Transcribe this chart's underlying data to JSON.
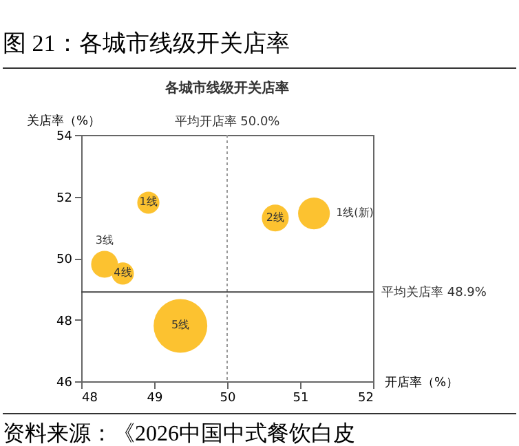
{
  "chart_data": {
    "type": "bubble",
    "title": "图 21：各城市线级开关店率",
    "subtitle": "各城市线级开关店率",
    "xlabel": "开店率（%）",
    "ylabel": "关店率（%）",
    "series": [
      {
        "name": "1线",
        "color": "#fcc230",
        "x": [
          48.92
        ],
        "values": [
          51.8
        ],
        "sizes": [
          0.17
        ]
      },
      {
        "name": "2线",
        "color": "#fcc230",
        "x": [
          50.66
        ],
        "values": [
          51.3
        ],
        "sizes": [
          0.25
        ]
      },
      {
        "name": "1线(新)",
        "color": "#fcc230",
        "x": [
          51.19
        ],
        "values": [
          51.45
        ],
        "sizes": [
          0.35
        ]
      },
      {
        "name": "3线",
        "color": "#fcc230",
        "x": [
          48.32
        ],
        "values": [
          49.8
        ],
        "sizes": [
          0.25
        ]
      },
      {
        "name": "4线",
        "color": "#fcc230",
        "x": [
          48.57
        ],
        "values": [
          49.5
        ],
        "sizes": [
          0.17
        ]
      },
      {
        "name": "5线",
        "color": "#fcc230",
        "x": [
          49.36
        ],
        "values": [
          47.8
        ],
        "sizes": [
          1
        ]
      }
    ],
    "xlim": [
      48,
      52
    ],
    "xticks": [
      48,
      49,
      50,
      51,
      52
    ],
    "ylim": [
      46,
      54
    ],
    "yticks": [
      46,
      48,
      50,
      52,
      54
    ],
    "ref_lines": [
      {
        "axis": "x",
        "value": 50,
        "label": "平均开店率 50.0%",
        "color": "#999999",
        "line_style": "dotted"
      },
      {
        "axis": "y",
        "value": 48.9,
        "label": "平均关店率 48.9%",
        "color": "#444444",
        "line_style": "solid"
      }
    ],
    "grid": false,
    "legend": false,
    "annotations": [
      "资料来源：《2026中国中式餐饮白皮"
    ]
  }
}
